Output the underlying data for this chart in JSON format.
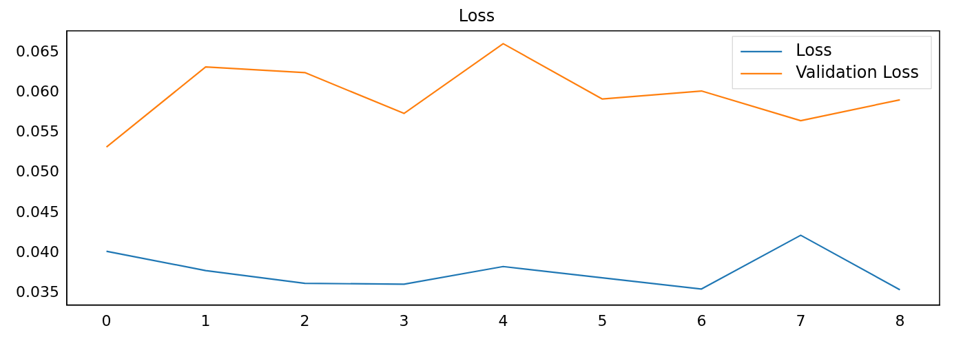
{
  "chart_data": {
    "type": "line",
    "title": "Loss",
    "x": [
      0,
      1,
      2,
      3,
      4,
      5,
      6,
      7,
      8
    ],
    "series": [
      {
        "name": "Loss",
        "color": "#1f77b4",
        "values": [
          0.0402,
          0.0378,
          0.0362,
          0.0361,
          0.0383,
          0.0369,
          0.0355,
          0.0422,
          0.0354
        ]
      },
      {
        "name": "Validation Loss",
        "color": "#ff7f0e",
        "values": [
          0.0532,
          0.0632,
          0.0625,
          0.0574,
          0.0661,
          0.0592,
          0.0602,
          0.0565,
          0.0591
        ]
      }
    ],
    "xlim": [
      -0.4,
      8.4
    ],
    "xticks": [
      0,
      1,
      2,
      3,
      4,
      5,
      6,
      7,
      8
    ],
    "ylim": [
      0.0335,
      0.0677
    ],
    "yticks": [
      0.035,
      {
        "value": 0.04,
        "label": "0.040"
      },
      0.045,
      {
        "value": 0.05,
        "label": "0.050"
      },
      0.055,
      {
        "value": 0.06,
        "label": "0.060"
      },
      0.065
    ],
    "grid": false,
    "legend": "top right",
    "marker": "none",
    "line_style": "solid"
  }
}
